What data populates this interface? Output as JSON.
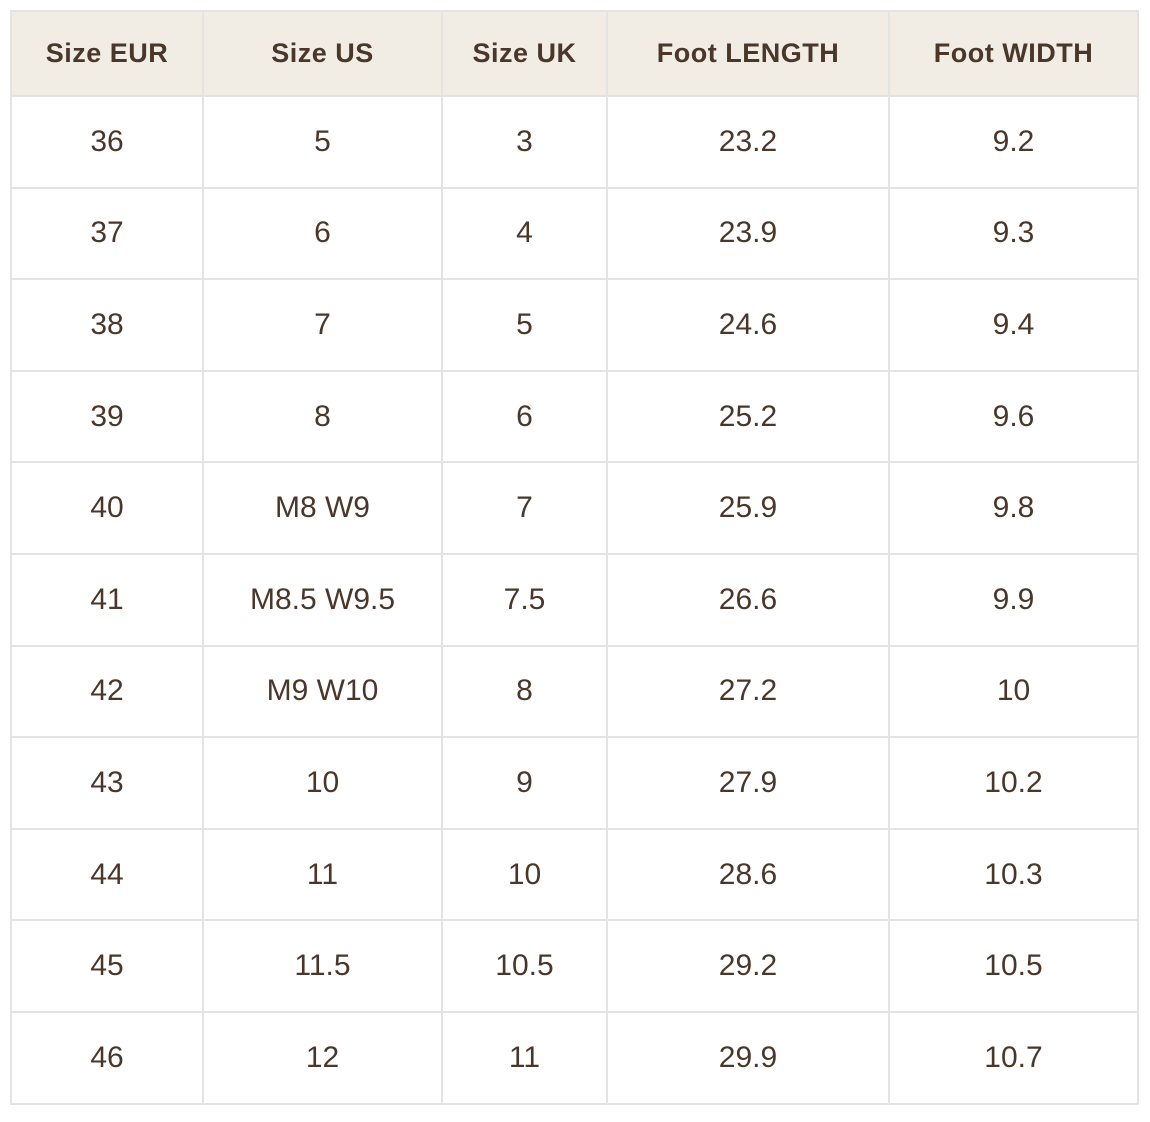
{
  "table": {
    "headers": [
      "Size EUR",
      "Size US",
      "Size UK",
      "Foot LENGTH",
      "Foot WIDTH"
    ],
    "rows": [
      [
        "36",
        "5",
        "3",
        "23.2",
        "9.2"
      ],
      [
        "37",
        "6",
        "4",
        "23.9",
        "9.3"
      ],
      [
        "38",
        "7",
        "5",
        "24.6",
        "9.4"
      ],
      [
        "39",
        "8",
        "6",
        "25.2",
        "9.6"
      ],
      [
        "40",
        "M8 W9",
        "7",
        "25.9",
        "9.8"
      ],
      [
        "41",
        "M8.5 W9.5",
        "7.5",
        "26.6",
        "9.9"
      ],
      [
        "42",
        "M9 W10",
        "8",
        "27.2",
        "10"
      ],
      [
        "43",
        "10",
        "9",
        "27.9",
        "10.2"
      ],
      [
        "44",
        "11",
        "10",
        "28.6",
        "10.3"
      ],
      [
        "45",
        "11.5",
        "10.5",
        "29.2",
        "10.5"
      ],
      [
        "46",
        "12",
        "11",
        "29.9",
        "10.7"
      ]
    ]
  },
  "colors": {
    "header_bg": "#f1ede5",
    "text": "#4a3729",
    "border": "#e3e3e3"
  }
}
